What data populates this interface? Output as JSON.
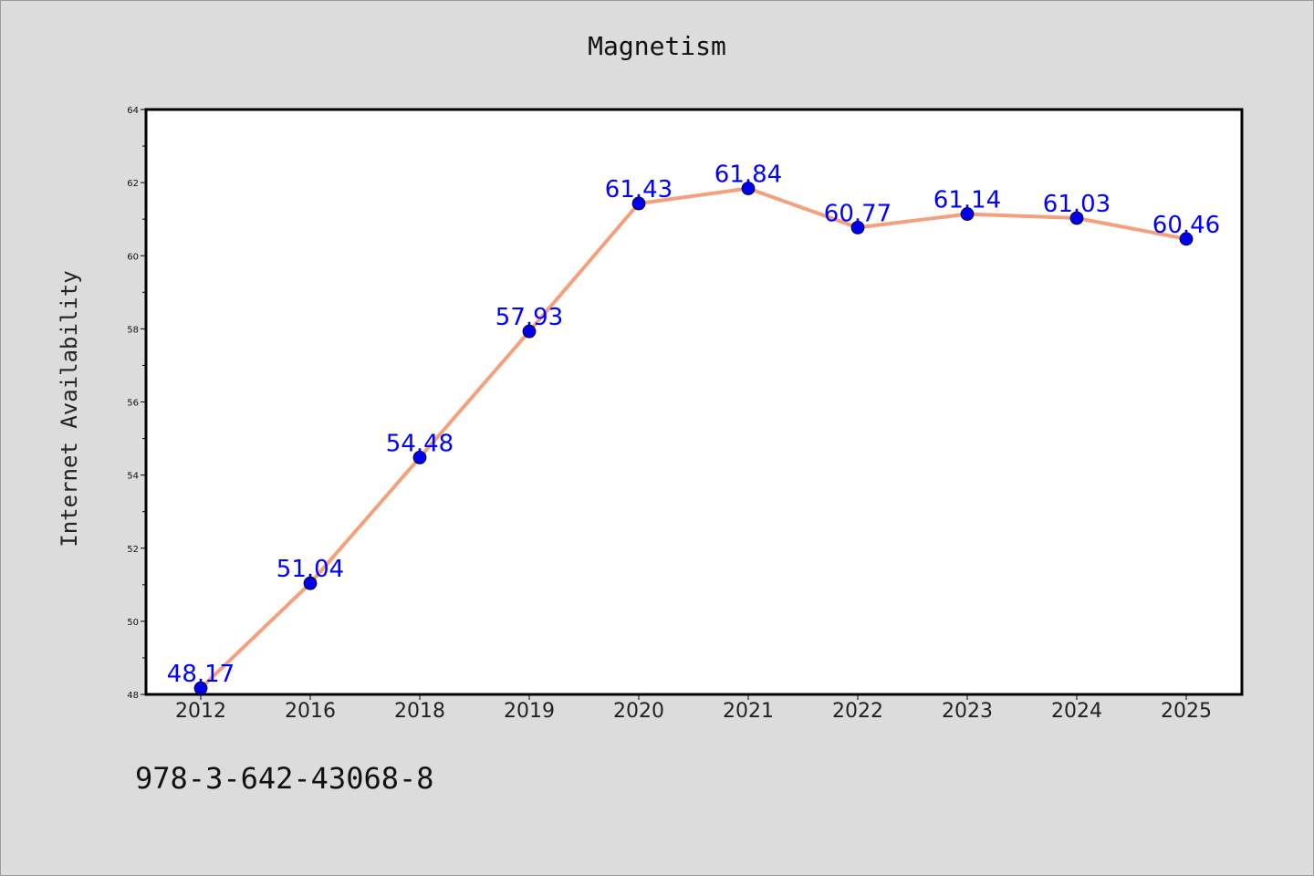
{
  "chart_data": {
    "type": "line",
    "title": "Magnetism",
    "xlabel": "",
    "ylabel": "Internet Availability",
    "categories": [
      "2012",
      "2016",
      "2018",
      "2019",
      "2020",
      "2021",
      "2022",
      "2023",
      "2024",
      "2025"
    ],
    "series": [
      {
        "values": [
          48.17,
          51.04,
          54.48,
          57.93,
          61.43,
          61.84,
          60.77,
          61.14,
          61.03,
          60.46
        ],
        "labels": [
          "48.17",
          "51.04",
          "54.48",
          "57.93",
          "61.43",
          "61.84",
          "60.77",
          "61.14",
          "61.03",
          "60.46"
        ],
        "line_color": "#f4a07c",
        "marker_color": "#0000ee"
      }
    ],
    "ylim": [
      48,
      64
    ],
    "yticks": [
      "48",
      "50",
      "52",
      "54",
      "56",
      "58",
      "60",
      "62",
      "64"
    ],
    "grid": false,
    "legend": "none"
  },
  "footer": {
    "code": "978-3-642-43068-8"
  },
  "colors": {
    "background": "#dcdcdc",
    "plot_bg": "#ffffff",
    "label": "#0000ff"
  }
}
